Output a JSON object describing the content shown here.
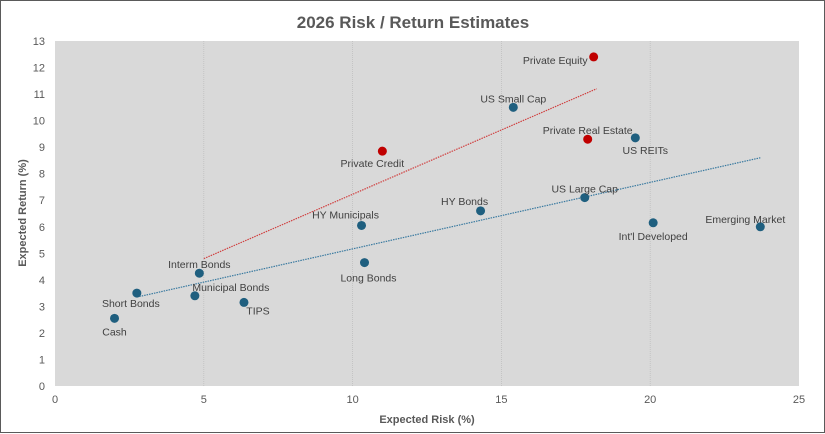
{
  "chart_data": {
    "type": "scatter",
    "title": "2026 Risk / Return Estimates",
    "xlabel": "Expected Risk (%)",
    "ylabel": "Expected Return (%)",
    "xlim": [
      0,
      25
    ],
    "ylim": [
      0,
      13
    ],
    "xticks": [
      "0",
      "5",
      "10",
      "15",
      "20",
      "25"
    ],
    "yticks": [
      "0",
      "1",
      "2",
      "3",
      "4",
      "5",
      "6",
      "7",
      "8",
      "9",
      "10",
      "11",
      "12",
      "13"
    ],
    "grid": "vertical",
    "colors": {
      "public": "#1f5f7f",
      "private": "#c00000",
      "plot_bg": "#d9d9d9"
    },
    "points": [
      {
        "name": "Private Equity",
        "x": 18.1,
        "y": 12.4,
        "group": "private"
      },
      {
        "name": "US Small Cap",
        "x": 15.4,
        "y": 10.5,
        "group": "public"
      },
      {
        "name": "Private Real Estate",
        "x": 17.9,
        "y": 9.3,
        "group": "private"
      },
      {
        "name": "US REITs",
        "x": 19.5,
        "y": 9.35,
        "group": "public"
      },
      {
        "name": "Private Credit",
        "x": 11.0,
        "y": 8.85,
        "group": "private"
      },
      {
        "name": "US Large Cap",
        "x": 17.8,
        "y": 7.1,
        "group": "public"
      },
      {
        "name": "HY Bonds",
        "x": 14.3,
        "y": 6.6,
        "group": "public"
      },
      {
        "name": "HY Municipals",
        "x": 10.3,
        "y": 6.05,
        "group": "public"
      },
      {
        "name": "Int'l Developed",
        "x": 20.1,
        "y": 6.15,
        "group": "public"
      },
      {
        "name": "Emerging Market",
        "x": 23.7,
        "y": 6.0,
        "group": "public"
      },
      {
        "name": "Long Bonds",
        "x": 10.4,
        "y": 4.65,
        "group": "public"
      },
      {
        "name": "Interm Bonds",
        "x": 4.85,
        "y": 4.25,
        "group": "public"
      },
      {
        "name": "Short Bonds",
        "x": 2.75,
        "y": 3.5,
        "group": "public"
      },
      {
        "name": "Municipal Bonds",
        "x": 4.7,
        "y": 3.4,
        "group": "public"
      },
      {
        "name": "TIPS",
        "x": 6.35,
        "y": 3.15,
        "group": "public"
      },
      {
        "name": "Cash",
        "x": 2.0,
        "y": 2.55,
        "group": "public"
      }
    ],
    "trendlines": [
      {
        "name": "private-trend",
        "group": "private",
        "from": [
          5.0,
          4.8
        ],
        "to": [
          18.2,
          11.2
        ]
      },
      {
        "name": "public-trend",
        "group": "public",
        "from": [
          2.75,
          3.35
        ],
        "to": [
          23.7,
          8.6
        ]
      }
    ]
  }
}
